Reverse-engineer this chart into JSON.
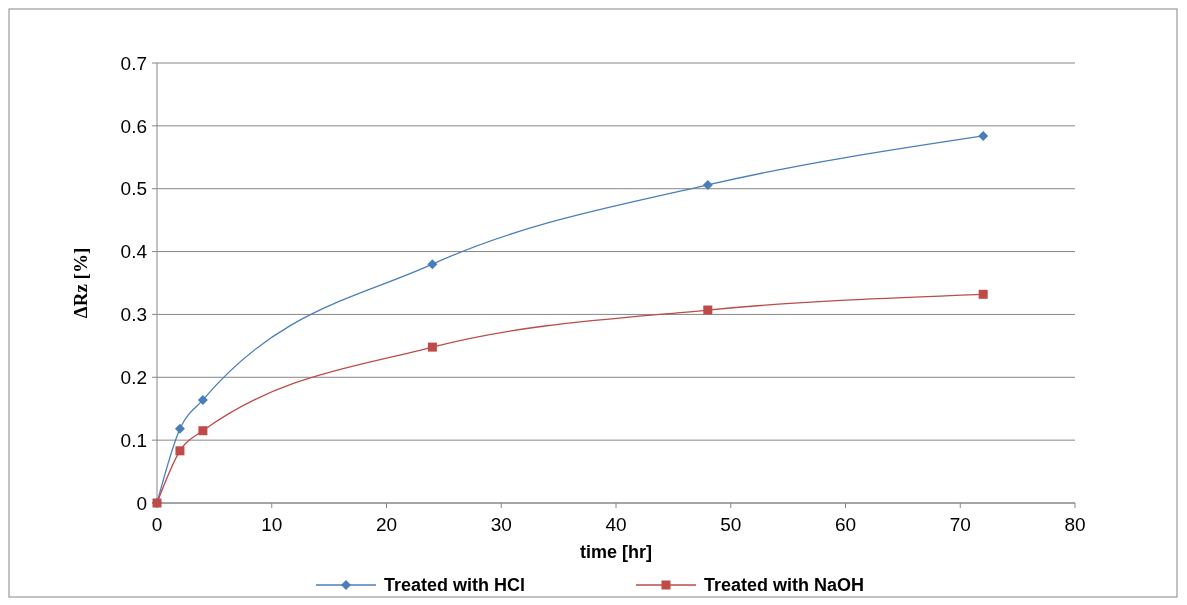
{
  "chart_data": {
    "type": "line",
    "xlabel": "time [hr]",
    "ylabel": "ΔRz [%]",
    "xlim": [
      0,
      80
    ],
    "xticks": [
      0,
      10,
      20,
      30,
      40,
      50,
      60,
      70,
      80
    ],
    "ylim": [
      0,
      0.7
    ],
    "yticks": [
      0,
      0.1,
      0.2,
      0.3,
      0.4,
      0.5,
      0.6,
      0.7
    ],
    "grid": "y",
    "legend": "bottom",
    "series": [
      {
        "name": "Treated with HCl",
        "color": "#4a7ebb",
        "marker": "diamond",
        "x": [
          0,
          2,
          4,
          24,
          48,
          72
        ],
        "values": [
          0,
          0.118,
          0.164,
          0.38,
          0.506,
          0.584
        ]
      },
      {
        "name": "Treated with NaOH",
        "color": "#be4b48",
        "marker": "square",
        "x": [
          0,
          2,
          4,
          24,
          48,
          72
        ],
        "values": [
          0,
          0.083,
          0.115,
          0.248,
          0.307,
          0.332
        ]
      }
    ]
  }
}
